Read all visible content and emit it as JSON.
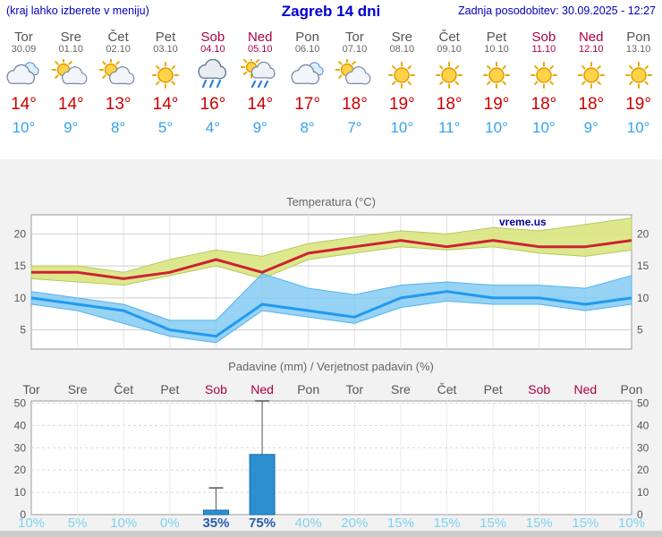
{
  "header": {
    "left_note": "(kraj lahko izberete v meniju)",
    "title": "Zagreb 14 dni",
    "updated": "Zadnja posodobitev: 30.09.2025 - 12:27"
  },
  "watermark": "vreme.us",
  "colors": {
    "link_blue": "#0000cc",
    "weekday_label": "#555555",
    "weekend_label": "#aa0044",
    "temp_max_text": "#cc0000",
    "temp_min_text": "#35a3ea",
    "temp_max_line": "#cc2233",
    "temp_max_band": "#d9e67f",
    "temp_min_line": "#2299ee",
    "temp_min_band": "#79c6f2",
    "precip_bar": "#2b8fd0",
    "prob_low_text": "#7fd2ef",
    "prob_high_text": "#2a5db0"
  },
  "days": [
    {
      "name": "Tor",
      "date": "30.09",
      "weekend": false,
      "icon": "cloudy",
      "tmax": "14°",
      "tmin": "10°",
      "prob": "10%",
      "prob_high": false
    },
    {
      "name": "Sre",
      "date": "01.10",
      "weekend": false,
      "icon": "sun-cloud",
      "tmax": "14°",
      "tmin": "9°",
      "prob": "5%",
      "prob_high": false
    },
    {
      "name": "Čet",
      "date": "02.10",
      "weekend": false,
      "icon": "sun-cloud",
      "tmax": "13°",
      "tmin": "8°",
      "prob": "10%",
      "prob_high": false
    },
    {
      "name": "Pet",
      "date": "03.10",
      "weekend": false,
      "icon": "sun",
      "tmax": "14°",
      "tmin": "5°",
      "prob": "0%",
      "prob_high": false
    },
    {
      "name": "Sob",
      "date": "04.10",
      "weekend": true,
      "icon": "rain",
      "tmax": "16°",
      "tmin": "4°",
      "prob": "35%",
      "prob_high": true
    },
    {
      "name": "Ned",
      "date": "05.10",
      "weekend": true,
      "icon": "sun-rain",
      "tmax": "14°",
      "tmin": "9°",
      "prob": "75%",
      "prob_high": true
    },
    {
      "name": "Pon",
      "date": "06.10",
      "weekend": false,
      "icon": "cloudy",
      "tmax": "17°",
      "tmin": "8°",
      "prob": "40%",
      "prob_high": false
    },
    {
      "name": "Tor",
      "date": "07.10",
      "weekend": false,
      "icon": "sun-cloud",
      "tmax": "18°",
      "tmin": "7°",
      "prob": "20%",
      "prob_high": false
    },
    {
      "name": "Sre",
      "date": "08.10",
      "weekend": false,
      "icon": "sun",
      "tmax": "19°",
      "tmin": "10°",
      "prob": "15%",
      "prob_high": false
    },
    {
      "name": "Čet",
      "date": "09.10",
      "weekend": false,
      "icon": "sun",
      "tmax": "18°",
      "tmin": "11°",
      "prob": "15%",
      "prob_high": false
    },
    {
      "name": "Pet",
      "date": "10.10",
      "weekend": false,
      "icon": "sun",
      "tmax": "19°",
      "tmin": "10°",
      "prob": "15%",
      "prob_high": false
    },
    {
      "name": "Sob",
      "date": "11.10",
      "weekend": true,
      "icon": "sun",
      "tmax": "18°",
      "tmin": "10°",
      "prob": "15%",
      "prob_high": false
    },
    {
      "name": "Ned",
      "date": "12.10",
      "weekend": true,
      "icon": "sun",
      "tmax": "18°",
      "tmin": "9°",
      "prob": "15%",
      "prob_high": false
    },
    {
      "name": "Pon",
      "date": "13.10",
      "weekend": false,
      "icon": "sun",
      "tmax": "19°",
      "tmin": "10°",
      "prob": "10%",
      "prob_high": false
    }
  ],
  "chart_data": [
    {
      "type": "line",
      "title": "Temperatura (°C)",
      "ylabel": "°C",
      "ylim": [
        2,
        23
      ],
      "yticks": [
        5,
        10,
        15,
        20
      ],
      "grid": true,
      "x_categories": [
        "Tor",
        "Sre",
        "Čet",
        "Pet",
        "Sob",
        "Ned",
        "Pon",
        "Tor",
        "Sre",
        "Čet",
        "Pet",
        "Sob",
        "Ned",
        "Pon"
      ],
      "series": [
        {
          "name": "temp-max",
          "values": [
            14,
            14,
            13,
            14,
            16,
            14,
            17,
            18,
            19,
            18,
            19,
            18,
            18,
            19
          ]
        },
        {
          "name": "temp-max-band-upper",
          "values": [
            15,
            15,
            14,
            16,
            17.5,
            16.5,
            18.5,
            19.5,
            20.5,
            20,
            21,
            20.5,
            21.5,
            22.5
          ]
        },
        {
          "name": "temp-max-band-lower",
          "values": [
            13,
            12.5,
            12,
            13.5,
            15,
            13,
            16,
            17,
            18,
            17.5,
            18,
            17,
            16.5,
            17.5
          ]
        },
        {
          "name": "temp-min",
          "values": [
            10,
            9,
            8,
            5,
            4,
            9,
            8,
            7,
            10,
            11,
            10,
            10,
            9,
            10
          ]
        },
        {
          "name": "temp-min-band-upper",
          "values": [
            11,
            10,
            9,
            6.5,
            6.5,
            13.8,
            11.5,
            10.5,
            12,
            12.5,
            12,
            12,
            11.5,
            13.5
          ]
        },
        {
          "name": "temp-min-band-lower",
          "values": [
            9,
            8,
            6,
            4,
            3,
            8,
            7,
            6,
            8.5,
            9.5,
            9,
            9,
            8,
            9
          ]
        }
      ]
    },
    {
      "type": "bar",
      "title": "Padavine (mm) / Verjetnost padavin (%)",
      "ylim": [
        0,
        51
      ],
      "yticks": [
        0,
        10,
        20,
        30,
        40,
        50
      ],
      "grid": true,
      "categories": [
        "Tor",
        "Sre",
        "Čet",
        "Pet",
        "Sob",
        "Ned",
        "Pon",
        "Tor",
        "Sre",
        "Čet",
        "Pet",
        "Sob",
        "Ned",
        "Pon"
      ],
      "weekend_mask": [
        false,
        false,
        false,
        false,
        true,
        true,
        false,
        false,
        false,
        false,
        false,
        true,
        true,
        false
      ],
      "series": [
        {
          "name": "padavine-mm",
          "values": [
            0,
            0,
            0,
            0,
            2,
            27,
            0,
            0,
            0,
            0,
            0,
            0,
            0,
            0
          ]
        },
        {
          "name": "padavine-max-mm",
          "values": [
            0,
            0,
            0,
            0,
            12,
            52,
            0,
            0,
            0,
            0,
            0,
            0,
            0,
            0
          ]
        }
      ],
      "probability_labels": [
        "10%",
        "5%",
        "10%",
        "0%",
        "35%",
        "75%",
        "40%",
        "20%",
        "15%",
        "15%",
        "15%",
        "15%",
        "15%",
        "10%"
      ]
    }
  ]
}
